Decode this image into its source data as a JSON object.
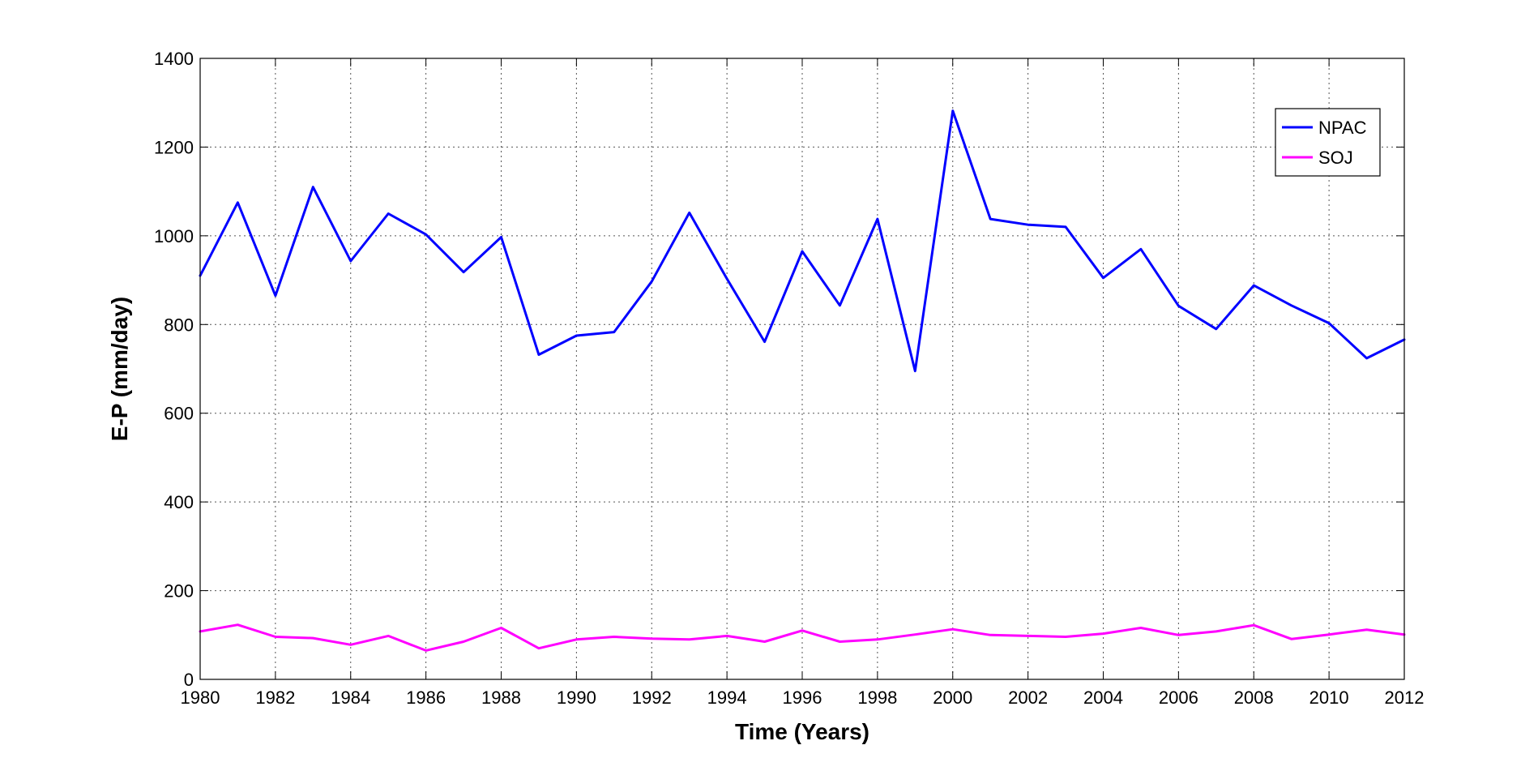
{
  "chart_data": {
    "type": "line",
    "title": "",
    "xlabel": "Time (Years)",
    "ylabel": "E-P (mm/day)",
    "xlim": [
      1980,
      2012
    ],
    "ylim": [
      0,
      1400
    ],
    "x": [
      1980,
      1981,
      1982,
      1983,
      1984,
      1985,
      1986,
      1987,
      1988,
      1989,
      1990,
      1991,
      1992,
      1993,
      1994,
      1995,
      1996,
      1997,
      1998,
      1999,
      2000,
      2001,
      2002,
      2003,
      2004,
      2005,
      2006,
      2007,
      2008,
      2009,
      2010,
      2011,
      2012
    ],
    "xticks": [
      1980,
      1982,
      1984,
      1986,
      1988,
      1990,
      1992,
      1994,
      1996,
      1998,
      2000,
      2002,
      2004,
      2006,
      2008,
      2010,
      2012
    ],
    "yticks": [
      0,
      200,
      400,
      600,
      800,
      1000,
      1200,
      1400
    ],
    "grid": true,
    "legend_position": "top-right",
    "series": [
      {
        "name": "NPAC",
        "color": "#0000ff",
        "values": [
          910,
          1075,
          865,
          1110,
          943,
          1050,
          1003,
          918,
          997,
          732,
          775,
          783,
          897,
          1052,
          903,
          761,
          965,
          843,
          1038,
          695,
          1282,
          1038,
          1025,
          1020,
          905,
          970,
          842,
          790,
          888,
          843,
          803,
          724,
          766
        ]
      },
      {
        "name": "SOJ",
        "color": "#ff00ff",
        "values": [
          108,
          123,
          96,
          93,
          78,
          98,
          65,
          85,
          116,
          70,
          90,
          96,
          92,
          90,
          98,
          85,
          110,
          85,
          90,
          101,
          113,
          100,
          98,
          96,
          103,
          116,
          100,
          108,
          122,
          91,
          101,
          112,
          101
        ]
      }
    ]
  }
}
